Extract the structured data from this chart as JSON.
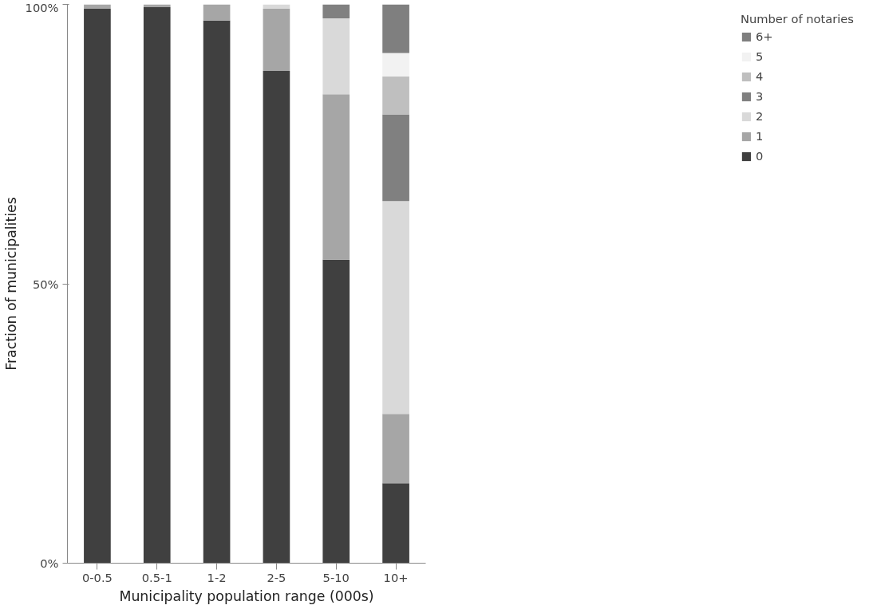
{
  "chart_data": {
    "type": "bar",
    "stacked": true,
    "xlabel": "Municipality population range (000s)",
    "ylabel": "Fraction of municipalities",
    "legend_title": "Number of notaries",
    "legend": "right",
    "grid": false,
    "categories": [
      "0-0.5",
      "0.5-1",
      "1-2",
      "2-5",
      "5-10",
      "10+"
    ],
    "ylim": [
      0,
      100
    ],
    "yticks": [
      {
        "value": 0,
        "label": "0%"
      },
      {
        "value": 50,
        "label": "50%"
      },
      {
        "value": 100,
        "label": "100%"
      }
    ],
    "series": [
      {
        "name": "0",
        "color": "#404040",
        "values": [
          99.2,
          99.5,
          97.1,
          88.1,
          54.3,
          14.3
        ]
      },
      {
        "name": "1",
        "color": "#a6a6a6",
        "values": [
          0.8,
          0.5,
          2.9,
          11.1,
          29.6,
          12.4
        ]
      },
      {
        "name": "2",
        "color": "#d9d9d9",
        "values": [
          0,
          0,
          0,
          0.8,
          13.6,
          38.1
        ]
      },
      {
        "name": "3",
        "color": "#808080",
        "values": [
          0,
          0,
          0,
          0,
          2.5,
          15.5
        ]
      },
      {
        "name": "4",
        "color": "#bfbfbf",
        "values": [
          0,
          0,
          0,
          0,
          0,
          6.8
        ]
      },
      {
        "name": "5",
        "color": "#f2f2f2",
        "values": [
          0,
          0,
          0,
          0,
          0,
          4.2
        ]
      },
      {
        "name": "6+",
        "color": "#7f7f7f",
        "values": [
          0,
          0,
          0,
          0,
          0,
          8.7
        ]
      }
    ]
  }
}
